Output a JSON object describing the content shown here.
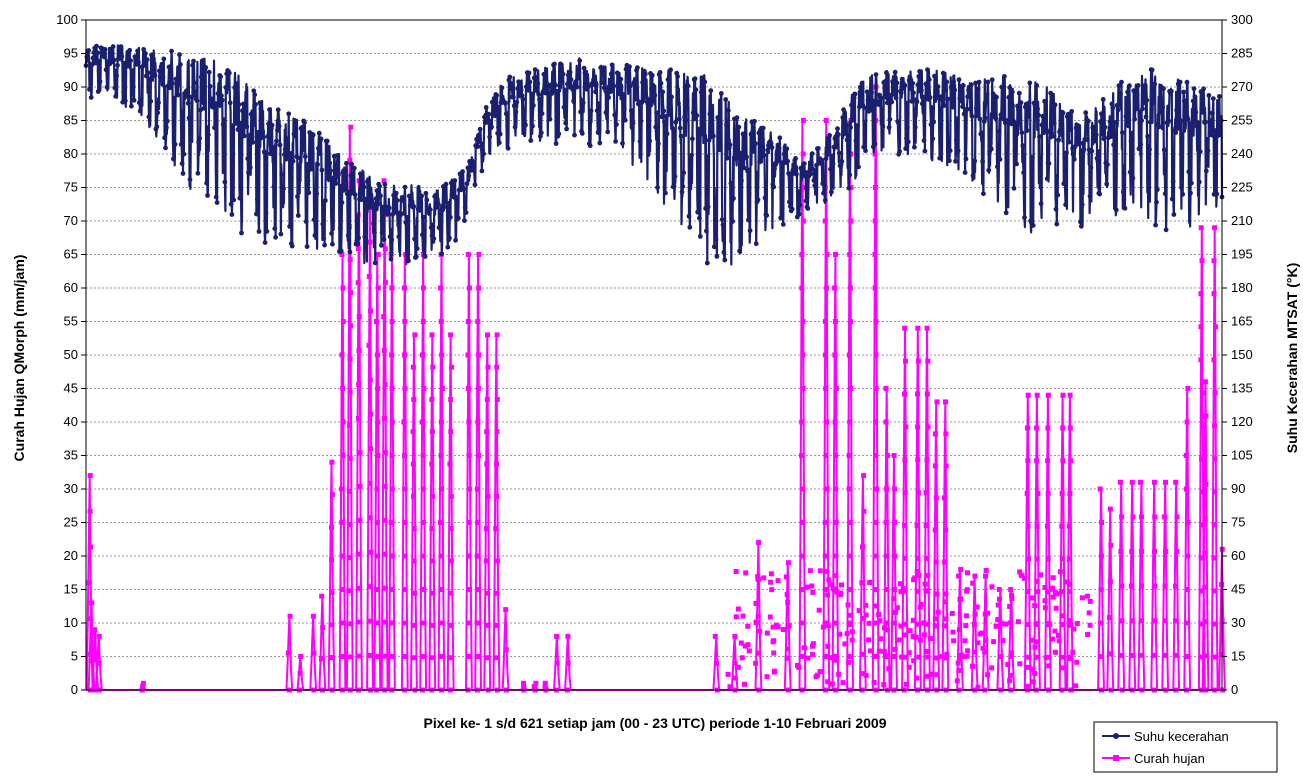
{
  "chart_data": {
    "type": "line",
    "xlabel": "Pixel ke- 1 s/d 621 setiap jam (00 - 23 UTC) periode 1-10 Februari 2009",
    "ylabel_left": "Curah Hujan QMorph (mm/jam)",
    "ylabel_right": "Suhu Kecerahan MTSAT (°K)",
    "y_left_range": [
      0,
      100
    ],
    "y_left_ticks": [
      "0",
      "5",
      "10",
      "15",
      "20",
      "25",
      "30",
      "35",
      "40",
      "45",
      "50",
      "55",
      "60",
      "65",
      "70",
      "75",
      "80",
      "85",
      "90",
      "95",
      "100"
    ],
    "y_right_range": [
      0,
      300
    ],
    "y_right_ticks": [
      "0",
      "15",
      "30",
      "45",
      "60",
      "75",
      "90",
      "105",
      "120",
      "135",
      "150",
      "165",
      "180",
      "195",
      "210",
      "225",
      "240",
      "255",
      "270",
      "285",
      "300"
    ],
    "x_range": [
      1,
      621
    ],
    "grid": true,
    "legend_position": "bottom-right",
    "series": [
      {
        "name": "Suhu kecerahan",
        "axis": "right",
        "color": "#1a1f6e",
        "marker": "circle",
        "envelope": {
          "x": [
            1,
            10,
            20,
            30,
            40,
            50,
            60,
            70,
            80,
            90,
            100,
            110,
            120,
            130,
            140,
            150,
            160,
            170,
            180,
            190,
            200,
            210,
            220,
            230,
            240,
            250,
            260,
            270,
            280,
            290,
            300,
            310,
            320,
            330,
            340,
            350,
            360,
            370,
            380,
            390,
            400,
            410,
            420,
            430,
            440,
            450,
            460,
            470,
            480,
            490,
            500,
            510,
            520,
            530,
            540,
            550,
            560,
            570,
            580,
            590,
            600,
            610,
            621
          ],
          "high": [
            290,
            290,
            290,
            290,
            288,
            289,
            286,
            287,
            283,
            275,
            268,
            262,
            258,
            251,
            242,
            236,
            230,
            228,
            229,
            224,
            230,
            237,
            265,
            275,
            280,
            281,
            283,
            285,
            284,
            283,
            283,
            282,
            282,
            280,
            280,
            270,
            260,
            256,
            250,
            238,
            244,
            256,
            272,
            278,
            280,
            280,
            281,
            279,
            276,
            276,
            279,
            276,
            276,
            272,
            264,
            261,
            272,
            278,
            282,
            280,
            276,
            274,
            268
          ],
          "low": [
            262,
            268,
            262,
            258,
            246,
            232,
            220,
            212,
            206,
            202,
            200,
            197,
            196,
            196,
            193,
            191,
            190,
            189,
            191,
            193,
            196,
            213,
            236,
            242,
            244,
            245,
            244,
            243,
            243,
            240,
            232,
            226,
            208,
            196,
            191,
            189,
            192,
            203,
            208,
            211,
            216,
            220,
            226,
            232,
            236,
            238,
            237,
            234,
            230,
            222,
            214,
            206,
            204,
            206,
            206,
            208,
            211,
            214,
            210,
            206,
            206,
            210,
            214
          ]
        }
      },
      {
        "name": "Curah hujan",
        "axis": "left",
        "color": "#ff00ff",
        "marker": "square",
        "spikes": {
          "x": [
            3,
            4,
            6,
            8,
            32,
            112,
            118,
            125,
            130,
            135,
            141,
            145,
            150,
            156,
            160,
            164,
            168,
            175,
            180,
            185,
            190,
            195,
            200,
            210,
            215,
            220,
            225,
            230,
            240,
            246,
            252,
            258,
            264,
            345,
            355,
            368,
            384,
            392,
            405,
            410,
            418,
            425,
            432,
            438,
            442,
            448,
            455,
            460,
            465,
            470,
            478,
            486,
            492,
            500,
            506,
            515,
            520,
            526,
            534,
            538,
            555,
            560,
            566,
            572,
            577,
            584,
            590,
            596,
            602,
            610,
            612,
            617,
            621
          ],
          "peak": [
            32,
            13,
            9,
            8,
            1,
            11,
            5,
            11,
            14,
            34,
            65,
            84,
            76,
            72,
            65,
            76,
            65,
            65,
            53,
            65,
            53,
            65,
            53,
            65,
            65,
            53,
            53,
            12,
            1,
            1,
            1,
            8,
            8,
            8,
            8,
            22,
            19,
            85,
            85,
            65,
            85,
            32,
            90,
            45,
            35,
            54,
            54,
            54,
            43,
            43,
            18,
            17,
            17,
            15,
            15,
            44,
            44,
            44,
            44,
            44,
            30,
            27,
            31,
            31,
            31,
            31,
            31,
            31,
            45,
            69,
            46,
            69,
            21
          ]
        }
      }
    ]
  },
  "legend": {
    "items": [
      {
        "label": "Suhu kecerahan",
        "color": "#1a1f6e"
      },
      {
        "label": "Curah hujan",
        "color": "#ff00ff"
      }
    ]
  }
}
